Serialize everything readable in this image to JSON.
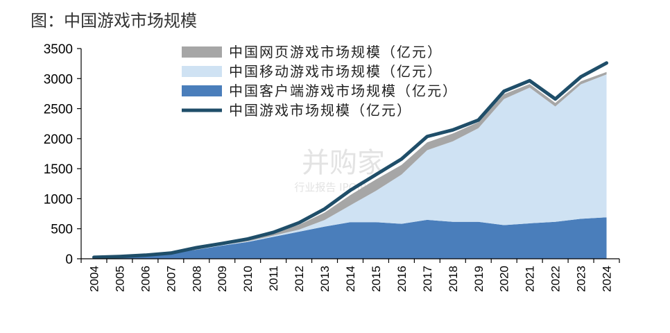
{
  "title": "图：中国游戏市场规模",
  "watermark": {
    "main": "并购家",
    "sub": "行业报告 IPOIPO.CN"
  },
  "colors": {
    "web": "#a6a6a6",
    "mobile": "#cfe2f3",
    "client": "#4a7ebb",
    "total": "#1f4e69"
  },
  "chart_data": {
    "type": "area",
    "title": "",
    "xlabel": "",
    "ylabel": "",
    "ylim": [
      0,
      3500
    ],
    "yticks": [
      0,
      500,
      1000,
      1500,
      2000,
      2500,
      3000,
      3500
    ],
    "grid": false,
    "legend_position": "top-center",
    "x": [
      "2004",
      "2005",
      "2006",
      "2007",
      "2008",
      "2009",
      "2010",
      "2011",
      "2012",
      "2013",
      "2014",
      "2015",
      "2016",
      "2017",
      "2018",
      "2019",
      "2020",
      "2021",
      "2022",
      "2023",
      "2024"
    ],
    "series": [
      {
        "name": "中国客户端游戏市场规模（亿元）",
        "kind": "area",
        "colorKey": "client",
        "values": [
          25,
          38,
          60,
          95,
          150,
          220,
          280,
          365,
          450,
          535,
          610,
          610,
          582,
          648,
          615,
          615,
          560,
          590,
          615,
          665,
          690
        ]
      },
      {
        "name": "中国移动游戏市场规模（亿元）",
        "kind": "area",
        "colorKey": "mobile",
        "values": [
          0,
          0,
          0,
          0,
          0,
          8,
          10,
          20,
          35,
          110,
          280,
          520,
          820,
          1160,
          1340,
          1560,
          2100,
          2260,
          1920,
          2240,
          2380
        ]
      },
      {
        "name": "中国网页游戏市场规模（亿元）",
        "kind": "area",
        "colorKey": "web",
        "values": [
          0,
          0,
          0,
          0,
          15,
          25,
          40,
          55,
          80,
          125,
          170,
          190,
          160,
          130,
          130,
          100,
          80,
          60,
          60,
          50,
          40
        ]
      },
      {
        "name": "中国游戏市场规模（亿元）",
        "kind": "line",
        "colorKey": "total",
        "values": [
          25,
          38,
          60,
          95,
          185,
          255,
          330,
          440,
          600,
          830,
          1140,
          1400,
          1660,
          2036,
          2145,
          2310,
          2790,
          2965,
          2660,
          3030,
          3260
        ]
      }
    ],
    "legend_order": [
      "中国网页游戏市场规模（亿元）",
      "中国移动游戏市场规模（亿元）",
      "中国客户端游戏市场规模（亿元）",
      "中国游戏市场规模（亿元）"
    ]
  }
}
